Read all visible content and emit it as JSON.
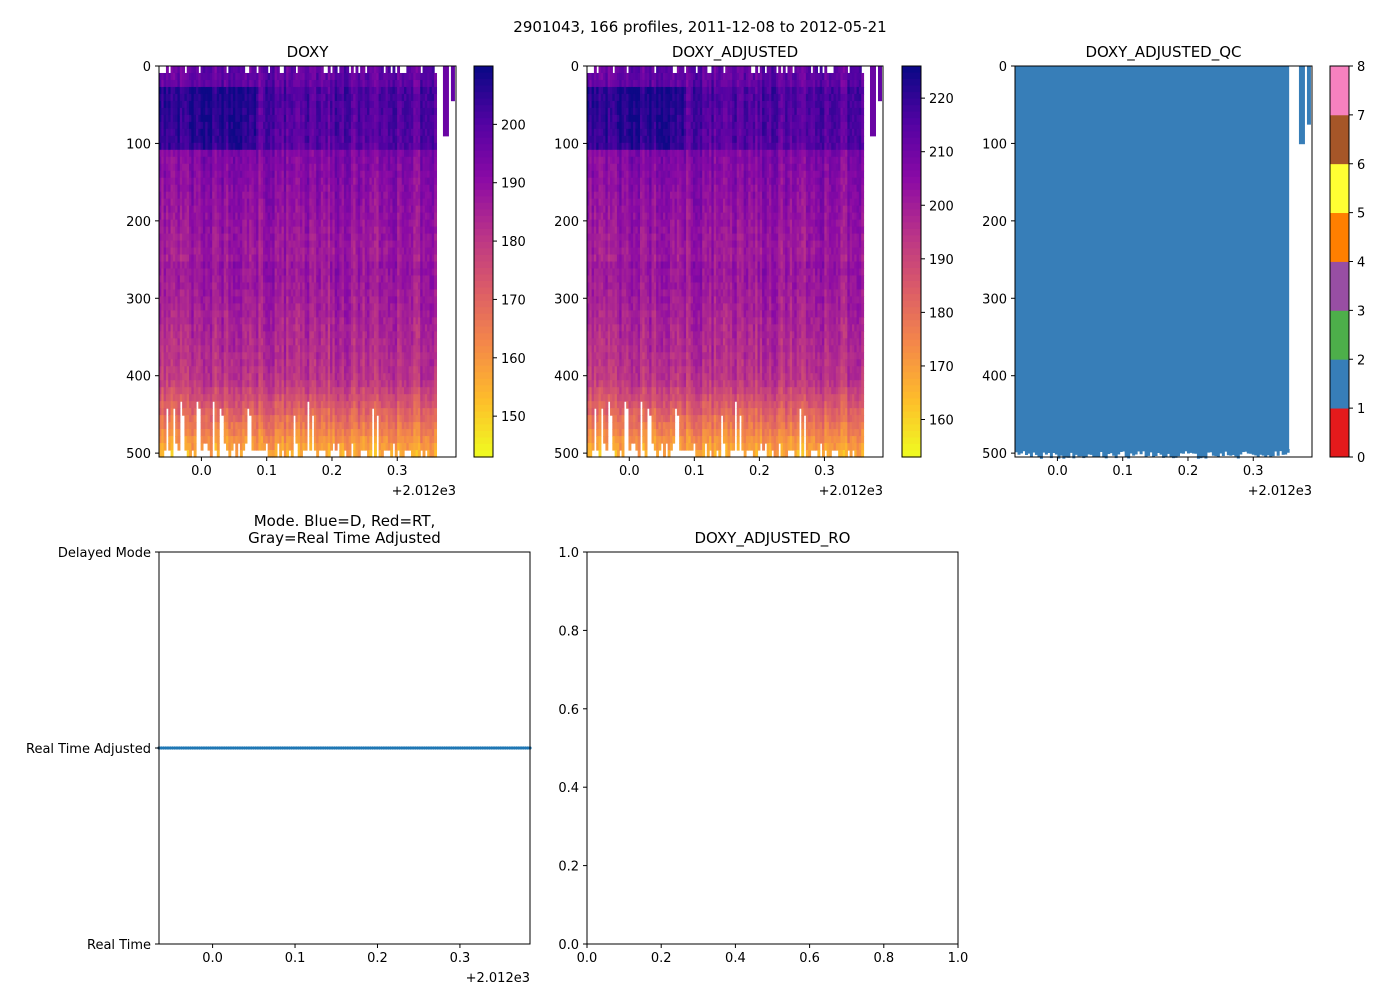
{
  "figure": {
    "suptitle": "2901043, 166 profiles, 2011-12-08 to 2012-05-21"
  },
  "chart_data": [
    {
      "type": "heatmap",
      "title": "DOXY",
      "x_offset_label": "+2.012e3",
      "x_ticks": [
        0.0,
        0.1,
        0.2,
        0.3
      ],
      "x_tick_labels": [
        "0.0",
        "0.1",
        "0.2",
        "0.3"
      ],
      "xlim": [
        -0.065,
        0.39
      ],
      "y_ticks": [
        0,
        100,
        200,
        300,
        400,
        500
      ],
      "y_tick_labels": [
        "0",
        "100",
        "200",
        "300",
        "400",
        "500"
      ],
      "ylim": [
        505,
        0
      ],
      "data_x_range": [
        -0.065,
        0.36
      ],
      "colormap": "plasma_r",
      "colorbar": {
        "min": 143,
        "max": 210,
        "ticks": [
          150,
          160,
          170,
          180,
          190,
          200
        ],
        "tick_labels": [
          "150",
          "160",
          "170",
          "180",
          "190",
          "200"
        ]
      }
    },
    {
      "type": "heatmap",
      "title": "DOXY_ADJUSTED",
      "x_offset_label": "+2.012e3",
      "x_ticks": [
        0.0,
        0.1,
        0.2,
        0.3
      ],
      "x_tick_labels": [
        "0.0",
        "0.1",
        "0.2",
        "0.3"
      ],
      "xlim": [
        -0.065,
        0.39
      ],
      "y_ticks": [
        0,
        100,
        200,
        300,
        400,
        500
      ],
      "y_tick_labels": [
        "0",
        "100",
        "200",
        "300",
        "400",
        "500"
      ],
      "ylim": [
        505,
        0
      ],
      "data_x_range": [
        -0.065,
        0.36
      ],
      "colormap": "plasma_r",
      "colorbar": {
        "min": 153,
        "max": 226,
        "ticks": [
          160,
          170,
          180,
          190,
          200,
          210,
          220
        ],
        "tick_labels": [
          "160",
          "170",
          "180",
          "190",
          "200",
          "210",
          "220"
        ]
      }
    },
    {
      "type": "heatmap",
      "title": "DOXY_ADJUSTED_QC",
      "x_offset_label": "+2.012e3",
      "x_ticks": [
        0.0,
        0.1,
        0.2,
        0.3
      ],
      "x_tick_labels": [
        "0.0",
        "0.1",
        "0.2",
        "0.3"
      ],
      "xlim": [
        -0.065,
        0.39
      ],
      "y_ticks": [
        0,
        100,
        200,
        300,
        400,
        500
      ],
      "y_tick_labels": [
        "0",
        "100",
        "200",
        "300",
        "400",
        "500"
      ],
      "ylim": [
        505,
        0
      ],
      "dominant_flag": 1,
      "flag_colors": [
        "#e41a1c",
        "#377eb8",
        "#4daf4a",
        "#984ea3",
        "#ff7f00",
        "#ffff33",
        "#a65628",
        "#f781bf",
        "#999999"
      ],
      "colorbar": {
        "min": 0,
        "max": 8,
        "ticks": [
          0,
          1,
          2,
          3,
          4,
          5,
          6,
          7,
          8
        ],
        "tick_labels": [
          "0",
          "1",
          "2",
          "3",
          "4",
          "5",
          "6",
          "7",
          "8"
        ]
      }
    },
    {
      "type": "scatter",
      "title": "Mode. Blue=D, Red=RT,\nGray=Real Time Adjusted",
      "title_lines": [
        "Mode. Blue=D, Red=RT,",
        "Gray=Real Time Adjusted"
      ],
      "x_offset_label": "+2.012e3",
      "x_ticks": [
        0.0,
        0.1,
        0.2,
        0.3
      ],
      "x_tick_labels": [
        "0.0",
        "0.1",
        "0.2",
        "0.3"
      ],
      "xlim": [
        -0.065,
        0.385
      ],
      "y_categories": [
        "Real Time",
        "Real Time Adjusted",
        "Delayed Mode"
      ],
      "ylim": [
        0,
        2
      ],
      "series": [
        {
          "name": "profiles",
          "n_points": 166,
          "y_value": 1,
          "x_range": [
            -0.065,
            0.385
          ],
          "color": "#1f77b4"
        }
      ]
    },
    {
      "type": "line",
      "title": "DOXY_ADJUSTED_RO",
      "x_ticks": [
        0.0,
        0.2,
        0.4,
        0.6,
        0.8,
        1.0
      ],
      "x_tick_labels": [
        "0.0",
        "0.2",
        "0.4",
        "0.6",
        "0.8",
        "1.0"
      ],
      "y_ticks": [
        0.0,
        0.2,
        0.4,
        0.6,
        0.8,
        1.0
      ],
      "y_tick_labels": [
        "0.0",
        "0.2",
        "0.4",
        "0.6",
        "0.8",
        "1.0"
      ],
      "xlim": [
        0,
        1
      ],
      "ylim": [
        0,
        1
      ],
      "series": []
    }
  ]
}
